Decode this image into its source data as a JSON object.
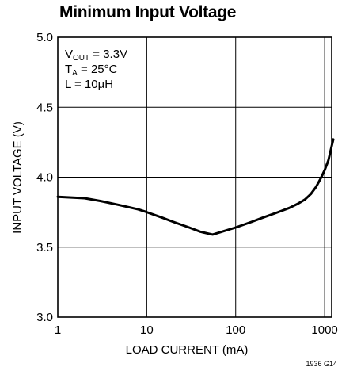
{
  "chart_data": {
    "type": "line",
    "title": "Minimum Input Voltage",
    "xlabel": "LOAD CURRENT (mA)",
    "ylabel": "INPUT VOLTAGE (V)",
    "xscale": "log",
    "xlim": [
      1,
      1200
    ],
    "ylim": [
      3.0,
      5.0
    ],
    "x_ticks": [
      1,
      10,
      100,
      1000
    ],
    "x_tick_labels": [
      "1",
      "10",
      "100",
      "1000"
    ],
    "y_ticks": [
      3.0,
      3.5,
      4.0,
      4.5,
      5.0
    ],
    "y_tick_labels": [
      "3.0",
      "3.5",
      "4.0",
      "4.5",
      "5.0"
    ],
    "grid": true,
    "annotation": {
      "vout": {
        "main": "V",
        "sub": "OUT",
        "rest": " = 3.3V"
      },
      "ta": {
        "main": "T",
        "sub": "A",
        "rest": " = 25°C"
      },
      "l": "L = 10µH"
    },
    "figure_id": "1936 G14",
    "series": [
      {
        "x": [
          1,
          2,
          3,
          5,
          8,
          10,
          15,
          20,
          30,
          40,
          55,
          70,
          100,
          150,
          200,
          300,
          400,
          500,
          600,
          700,
          800,
          900,
          1000,
          1100,
          1250
        ],
        "y": [
          3.86,
          3.85,
          3.83,
          3.8,
          3.77,
          3.75,
          3.71,
          3.68,
          3.64,
          3.61,
          3.59,
          3.61,
          3.64,
          3.68,
          3.71,
          3.75,
          3.78,
          3.81,
          3.84,
          3.88,
          3.93,
          3.99,
          4.05,
          4.12,
          4.27
        ]
      }
    ]
  }
}
